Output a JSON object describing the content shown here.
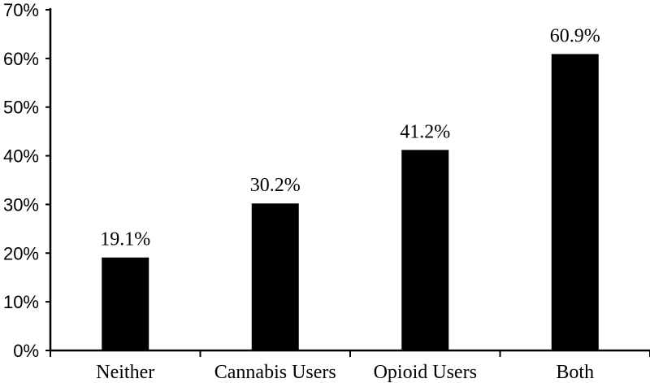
{
  "chart_data": {
    "type": "bar",
    "title": "",
    "xlabel": "",
    "ylabel": "",
    "categories": [
      "Neither",
      "Cannabis Users",
      "Opioid Users",
      "Both"
    ],
    "values": [
      19.1,
      30.2,
      41.2,
      60.9
    ],
    "data_labels": [
      "19.1%",
      "30.2%",
      "41.2%",
      "60.9%"
    ],
    "ylim": [
      0,
      70
    ],
    "yticks": [
      0,
      10,
      20,
      30,
      40,
      50,
      60,
      70
    ],
    "ytick_labels": [
      "0%",
      "10%",
      "20%",
      "30%",
      "40%",
      "50%",
      "60%",
      "70%"
    ],
    "grid": false,
    "legend": "none",
    "bar_color": "#000000"
  }
}
